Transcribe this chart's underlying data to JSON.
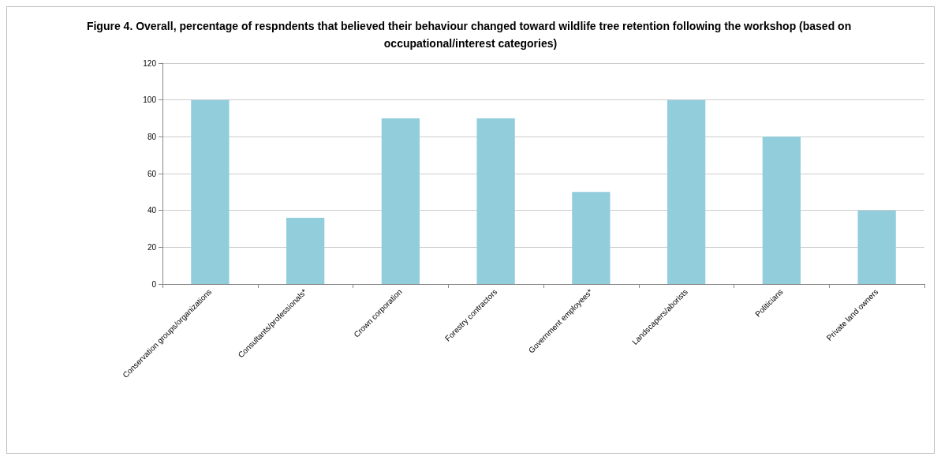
{
  "chart_data": {
    "type": "bar",
    "title": "Figure 4. Overall, percentage of respndents that believed their behaviour changed toward wildlife tree retention following the workshop (based on occupational/interest categories)",
    "categories": [
      "Conservation groups/organizations",
      "Consultants/professionals*",
      "Crown corporation",
      "Forestry contractors",
      "Government employees*",
      "Landscapers/aborists",
      "Politicians",
      "Private land owners"
    ],
    "values": [
      100,
      36,
      90,
      90,
      50,
      100,
      80,
      40
    ],
    "color": "#92cddc",
    "ylim": [
      0,
      120
    ],
    "yticks": [
      0,
      20,
      40,
      60,
      80,
      100,
      120
    ],
    "grid": "y"
  }
}
